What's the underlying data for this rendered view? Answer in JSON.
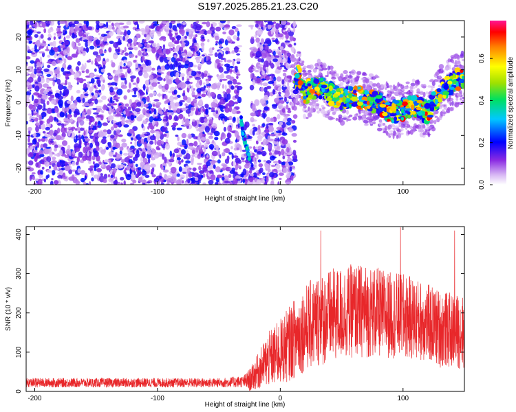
{
  "title": "S197.2025.285.21.23.C20",
  "colors": {
    "snr_line": "#e8272a",
    "axis": "#000000",
    "background": "#ffffff"
  },
  "chart_data": [
    {
      "type": "heatmap",
      "name": "spectrogram",
      "xlabel": "Height of straight line (km)",
      "ylabel": "Frequency (Hz)",
      "xlim": [
        -207,
        150
      ],
      "ylim": [
        -25,
        25
      ],
      "x_ticks": [
        -200,
        -100,
        0,
        100
      ],
      "x_tick_labels": [
        "-200",
        "-100",
        "0",
        "100"
      ],
      "y_ticks": [
        -20,
        -10,
        0,
        10,
        20
      ],
      "y_tick_labels": [
        "-20",
        "-10",
        "0",
        "10",
        "20"
      ],
      "colorbar": {
        "label": "Normalized spectral amplitude",
        "range": [
          0,
          0.78
        ],
        "ticks": [
          0.0,
          0.2,
          0.4,
          0.6
        ],
        "tick_labels": [
          "0.0",
          "0.2",
          "0.4",
          "0.6"
        ]
      },
      "regions": [
        {
          "description": "noise",
          "x_range": [
            -207,
            12
          ],
          "y_range": [
            -25,
            25
          ],
          "amplitude": [
            0.0,
            0.18
          ]
        },
        {
          "description": "data gap",
          "x_range": [
            -33,
            -24
          ],
          "y_range": [
            -6,
            25
          ],
          "amplitude": [
            0,
            0
          ]
        }
      ],
      "signal_track": [
        {
          "x": -32,
          "freq": -5
        },
        {
          "x": -30,
          "freq": -10
        },
        {
          "x": -27,
          "freq": -14
        },
        {
          "x": -25,
          "freq": -17
        },
        {
          "x": 12,
          "freq": 3
        },
        {
          "x": 15,
          "freq": 9
        },
        {
          "x": 20,
          "freq": 3
        },
        {
          "x": 30,
          "freq": 5
        },
        {
          "x": 40,
          "freq": 3
        },
        {
          "x": 50,
          "freq": 1
        },
        {
          "x": 60,
          "freq": 2
        },
        {
          "x": 70,
          "freq": 1
        },
        {
          "x": 80,
          "freq": 0
        },
        {
          "x": 90,
          "freq": -3
        },
        {
          "x": 100,
          "freq": -2
        },
        {
          "x": 110,
          "freq": -1
        },
        {
          "x": 120,
          "freq": -3
        },
        {
          "x": 130,
          "freq": 3
        },
        {
          "x": 140,
          "freq": 6
        },
        {
          "x": 150,
          "freq": 8
        }
      ]
    },
    {
      "type": "line",
      "name": "snr",
      "xlabel": "Height of straight line (km)",
      "ylabel": "SNR (10 * v/v)",
      "xlim": [
        -207,
        150
      ],
      "ylim": [
        0,
        420
      ],
      "x_ticks": [
        -200,
        -100,
        0,
        100
      ],
      "x_tick_labels": [
        "-200",
        "-100",
        "0",
        "100"
      ],
      "y_ticks": [
        0,
        100,
        200,
        300,
        400
      ],
      "y_tick_labels": [
        "0",
        "100",
        "200",
        "300",
        "400"
      ],
      "series": [
        {
          "name": "SNR",
          "x": [
            -207,
            -150,
            -100,
            -50,
            -30,
            -25,
            -20,
            -10,
            0,
            10,
            20,
            30,
            40,
            50,
            60,
            70,
            80,
            90,
            100,
            110,
            120,
            130,
            140,
            150
          ],
          "mean": [
            22,
            22,
            22,
            22,
            25,
            28,
            45,
            80,
            100,
            130,
            160,
            180,
            190,
            200,
            205,
            205,
            200,
            195,
            190,
            185,
            175,
            160,
            155,
            150
          ],
          "spread": [
            12,
            12,
            12,
            12,
            15,
            30,
            40,
            70,
            85,
            100,
            110,
            120,
            120,
            120,
            120,
            120,
            115,
            110,
            110,
            105,
            100,
            100,
            95,
            95
          ],
          "peaks": [
            {
              "x": 33,
              "y": 410
            },
            {
              "x": 98,
              "y": 418
            },
            {
              "x": 142,
              "y": 410
            }
          ]
        }
      ]
    }
  ]
}
